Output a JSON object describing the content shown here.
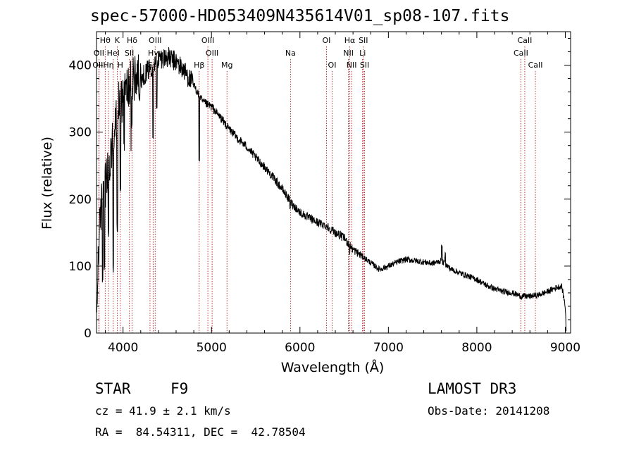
{
  "chart_data": {
    "type": "line",
    "title": "spec-57000-HD053409N435614V01_sp08-107.fits",
    "xlabel": "Wavelength (Å)",
    "ylabel": "Flux (relative)",
    "xlim": [
      3700,
      9060
    ],
    "ylim": [
      0,
      450
    ],
    "x_ticks": [
      4000,
      5000,
      6000,
      7000,
      8000,
      9000
    ],
    "y_ticks": [
      0,
      100,
      200,
      300,
      400
    ],
    "continuum": [
      [
        3700,
        10
      ],
      [
        3720,
        120
      ],
      [
        3760,
        200
      ],
      [
        3800,
        220
      ],
      [
        3850,
        250
      ],
      [
        3900,
        300
      ],
      [
        3950,
        340
      ],
      [
        4000,
        360
      ],
      [
        4050,
        365
      ],
      [
        4100,
        375
      ],
      [
        4150,
        385
      ],
      [
        4200,
        380
      ],
      [
        4300,
        395
      ],
      [
        4400,
        410
      ],
      [
        4500,
        412
      ],
      [
        4600,
        405
      ],
      [
        4700,
        390
      ],
      [
        4800,
        370
      ],
      [
        4900,
        345
      ],
      [
        5000,
        338
      ],
      [
        5100,
        322
      ],
      [
        5200,
        305
      ],
      [
        5300,
        290
      ],
      [
        5400,
        278
      ],
      [
        5500,
        262
      ],
      [
        5600,
        248
      ],
      [
        5700,
        232
      ],
      [
        5800,
        215
      ],
      [
        5900,
        195
      ],
      [
        6000,
        180
      ],
      [
        6100,
        172
      ],
      [
        6200,
        165
      ],
      [
        6300,
        160
      ],
      [
        6400,
        150
      ],
      [
        6500,
        142
      ],
      [
        6600,
        125
      ],
      [
        6700,
        115
      ],
      [
        6800,
        105
      ],
      [
        6900,
        95
      ],
      [
        7000,
        100
      ],
      [
        7100,
        106
      ],
      [
        7200,
        110
      ],
      [
        7300,
        108
      ],
      [
        7400,
        106
      ],
      [
        7500,
        104
      ],
      [
        7600,
        108
      ],
      [
        7700,
        96
      ],
      [
        7800,
        90
      ],
      [
        7900,
        85
      ],
      [
        8000,
        80
      ],
      [
        8100,
        72
      ],
      [
        8200,
        66
      ],
      [
        8300,
        62
      ],
      [
        8400,
        60
      ],
      [
        8500,
        55
      ],
      [
        8600,
        55
      ],
      [
        8700,
        57
      ],
      [
        8800,
        62
      ],
      [
        8900,
        68
      ],
      [
        8960,
        70
      ],
      [
        9000,
        40
      ],
      [
        9010,
        4
      ]
    ],
    "dips": [
      [
        3770,
        70
      ],
      [
        3790,
        90
      ],
      [
        3835,
        140
      ],
      [
        3890,
        90
      ],
      [
        3935,
        150
      ],
      [
        3970,
        210
      ],
      [
        4100,
        300
      ],
      [
        4340,
        290
      ],
      [
        4380,
        330
      ],
      [
        4861,
        250
      ],
      [
        5175,
        300
      ],
      [
        5890,
        180
      ],
      [
        6563,
        115
      ]
    ],
    "spikes": [
      [
        7605,
        133
      ],
      [
        7640,
        120
      ]
    ],
    "lines": [
      {
        "label": "Hθ",
        "x": 3798,
        "row": 1
      },
      {
        "label": "OII",
        "x": 3727,
        "row": 2
      },
      {
        "label": "OIII",
        "x": 3727,
        "row": 3
      },
      {
        "label": "K",
        "x": 3934,
        "row": 1
      },
      {
        "label": "HeI",
        "x": 3889,
        "row": 2
      },
      {
        "label": "Hη",
        "x": 3835,
        "row": 3
      },
      {
        "label": "H",
        "x": 3969,
        "row": 3
      },
      {
        "label": "SII",
        "x": 4072,
        "row": 2
      },
      {
        "label": "Hδ",
        "x": 4102,
        "row": 1
      },
      {
        "label": "OIII",
        "x": 4363,
        "row": 1
      },
      {
        "label": "Hγ",
        "x": 4340,
        "row": 2
      },
      {
        "label": "G",
        "x": 4305,
        "row": 3
      },
      {
        "label": "Hβ",
        "x": 4861,
        "row": 3
      },
      {
        "label": "OIII",
        "x": 4959,
        "row": 1
      },
      {
        "label": "OIII",
        "x": 5007,
        "row": 2
      },
      {
        "label": "Mg",
        "x": 5175,
        "row": 3
      },
      {
        "label": "Na",
        "x": 5893,
        "row": 2
      },
      {
        "label": "OI",
        "x": 6300,
        "row": 1
      },
      {
        "label": "OI",
        "x": 6364,
        "row": 3
      },
      {
        "label": "Hα",
        "x": 6563,
        "row": 1
      },
      {
        "label": "NII",
        "x": 6548,
        "row": 2
      },
      {
        "label": "NII",
        "x": 6584,
        "row": 3
      },
      {
        "label": "SII",
        "x": 6717,
        "row": 1
      },
      {
        "label": "Li",
        "x": 6708,
        "row": 2
      },
      {
        "label": "SII",
        "x": 6731,
        "row": 3
      },
      {
        "label": "CaII",
        "x": 8542,
        "row": 1
      },
      {
        "label": "CaII",
        "x": 8498,
        "row": 2
      },
      {
        "label": "CaII",
        "x": 8662,
        "row": 3
      }
    ]
  },
  "info": {
    "class_label": "STAR",
    "subclass": "F9",
    "survey": "LAMOST DR3",
    "cz": "cz = 41.9 ± 2.1 km/s",
    "obs_date": "Obs-Date: 20141208",
    "radec": "RA =  84.54311, DEC =  42.78504"
  },
  "colors": {
    "spectrum": "#000000",
    "line_marker": "#b00000",
    "axes": "#000000"
  }
}
